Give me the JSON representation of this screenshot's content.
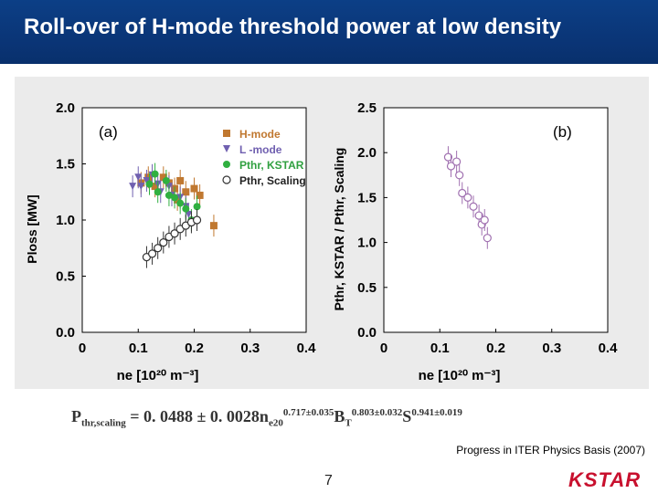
{
  "slide": {
    "title": "Roll-over of H-mode threshold power at low density",
    "formula": {
      "lhs": "P",
      "lhs_sub": "thr,scaling",
      "eq": " = 0. 0488 ± 0. 0028n",
      "ne_sub": "e20",
      "ne_sup": "0.717±0.035",
      "b": "B",
      "b_sub": "T",
      "b_sup": "0.803±0.032",
      "s": "S",
      "s_sup": "0.941±0.019"
    },
    "citation": "Progress in ITER Physics Basis (2007)",
    "page_number": "7",
    "logo_text": "KSTAR"
  },
  "chart_data": [
    {
      "type": "scatter",
      "panel_label": "(a)",
      "xlabel": "ne [10²⁰ m⁻³]",
      "ylabel": "Ploss [MW]",
      "xlim": [
        0,
        0.4
      ],
      "ylim": [
        0,
        2.0
      ],
      "xticks": [
        "0",
        "0.1",
        "0.2",
        "0.3",
        "0.4"
      ],
      "yticks": [
        "0.0",
        "0.5",
        "1.0",
        "1.5",
        "2.0"
      ],
      "legend_position": "top-right",
      "series": [
        {
          "name": "H-mode",
          "marker": "square",
          "color": "#c07830",
          "points": [
            [
              0.105,
              1.33
            ],
            [
              0.118,
              1.38
            ],
            [
              0.13,
              1.3
            ],
            [
              0.145,
              1.38
            ],
            [
              0.155,
              1.33
            ],
            [
              0.165,
              1.28
            ],
            [
              0.175,
              1.35
            ],
            [
              0.185,
              1.25
            ],
            [
              0.2,
              1.28
            ],
            [
              0.21,
              1.22
            ],
            [
              0.17,
              1.18
            ],
            [
              0.235,
              0.95
            ]
          ]
        },
        {
          "name": "L -mode",
          "marker": "triangle-down",
          "color": "#7060b0",
          "points": [
            [
              0.09,
              1.3
            ],
            [
              0.1,
              1.38
            ],
            [
              0.105,
              1.3
            ],
            [
              0.115,
              1.35
            ],
            [
              0.125,
              1.4
            ],
            [
              0.135,
              1.32
            ],
            [
              0.14,
              1.25
            ],
            [
              0.155,
              1.3
            ],
            [
              0.16,
              1.22
            ],
            [
              0.175,
              1.2
            ],
            [
              0.185,
              1.12
            ],
            [
              0.19,
              1.05
            ]
          ]
        },
        {
          "name": "Pthr, KSTAR",
          "marker": "circle-filled",
          "color": "#30b040",
          "points": [
            [
              0.12,
              1.32
            ],
            [
              0.13,
              1.41
            ],
            [
              0.135,
              1.25
            ],
            [
              0.15,
              1.35
            ],
            [
              0.155,
              1.22
            ],
            [
              0.165,
              1.2
            ],
            [
              0.175,
              1.15
            ],
            [
              0.185,
              1.1
            ],
            [
              0.195,
              1.0
            ],
            [
              0.205,
              1.12
            ]
          ]
        },
        {
          "name": "Pthr, Scaling",
          "marker": "circle-open",
          "color": "#333333",
          "points": [
            [
              0.115,
              0.67
            ],
            [
              0.125,
              0.7
            ],
            [
              0.135,
              0.75
            ],
            [
              0.145,
              0.8
            ],
            [
              0.155,
              0.85
            ],
            [
              0.165,
              0.88
            ],
            [
              0.175,
              0.92
            ],
            [
              0.185,
              0.95
            ],
            [
              0.195,
              0.98
            ],
            [
              0.205,
              1.0
            ]
          ]
        }
      ]
    },
    {
      "type": "scatter",
      "panel_label": "(b)",
      "xlabel": "ne [10²⁰ m⁻³]",
      "ylabel": "Pthr, KSTAR / Pthr, Scaling",
      "xlim": [
        0,
        0.4
      ],
      "ylim": [
        0,
        2.5
      ],
      "xticks": [
        "0",
        "0.1",
        "0.2",
        "0.3",
        "0.4"
      ],
      "yticks": [
        "0.0",
        "0.5",
        "1.0",
        "1.5",
        "2.0",
        "2.5"
      ],
      "series": [
        {
          "name": "Pthr, KSTAR / Pthr, Scaling",
          "marker": "circle-open",
          "color": "#a070b0",
          "points": [
            [
              0.115,
              1.95
            ],
            [
              0.12,
              1.85
            ],
            [
              0.13,
              1.9
            ],
            [
              0.135,
              1.75
            ],
            [
              0.14,
              1.55
            ],
            [
              0.15,
              1.5
            ],
            [
              0.16,
              1.4
            ],
            [
              0.17,
              1.3
            ],
            [
              0.175,
              1.2
            ],
            [
              0.18,
              1.25
            ],
            [
              0.185,
              1.05
            ]
          ]
        }
      ]
    }
  ]
}
